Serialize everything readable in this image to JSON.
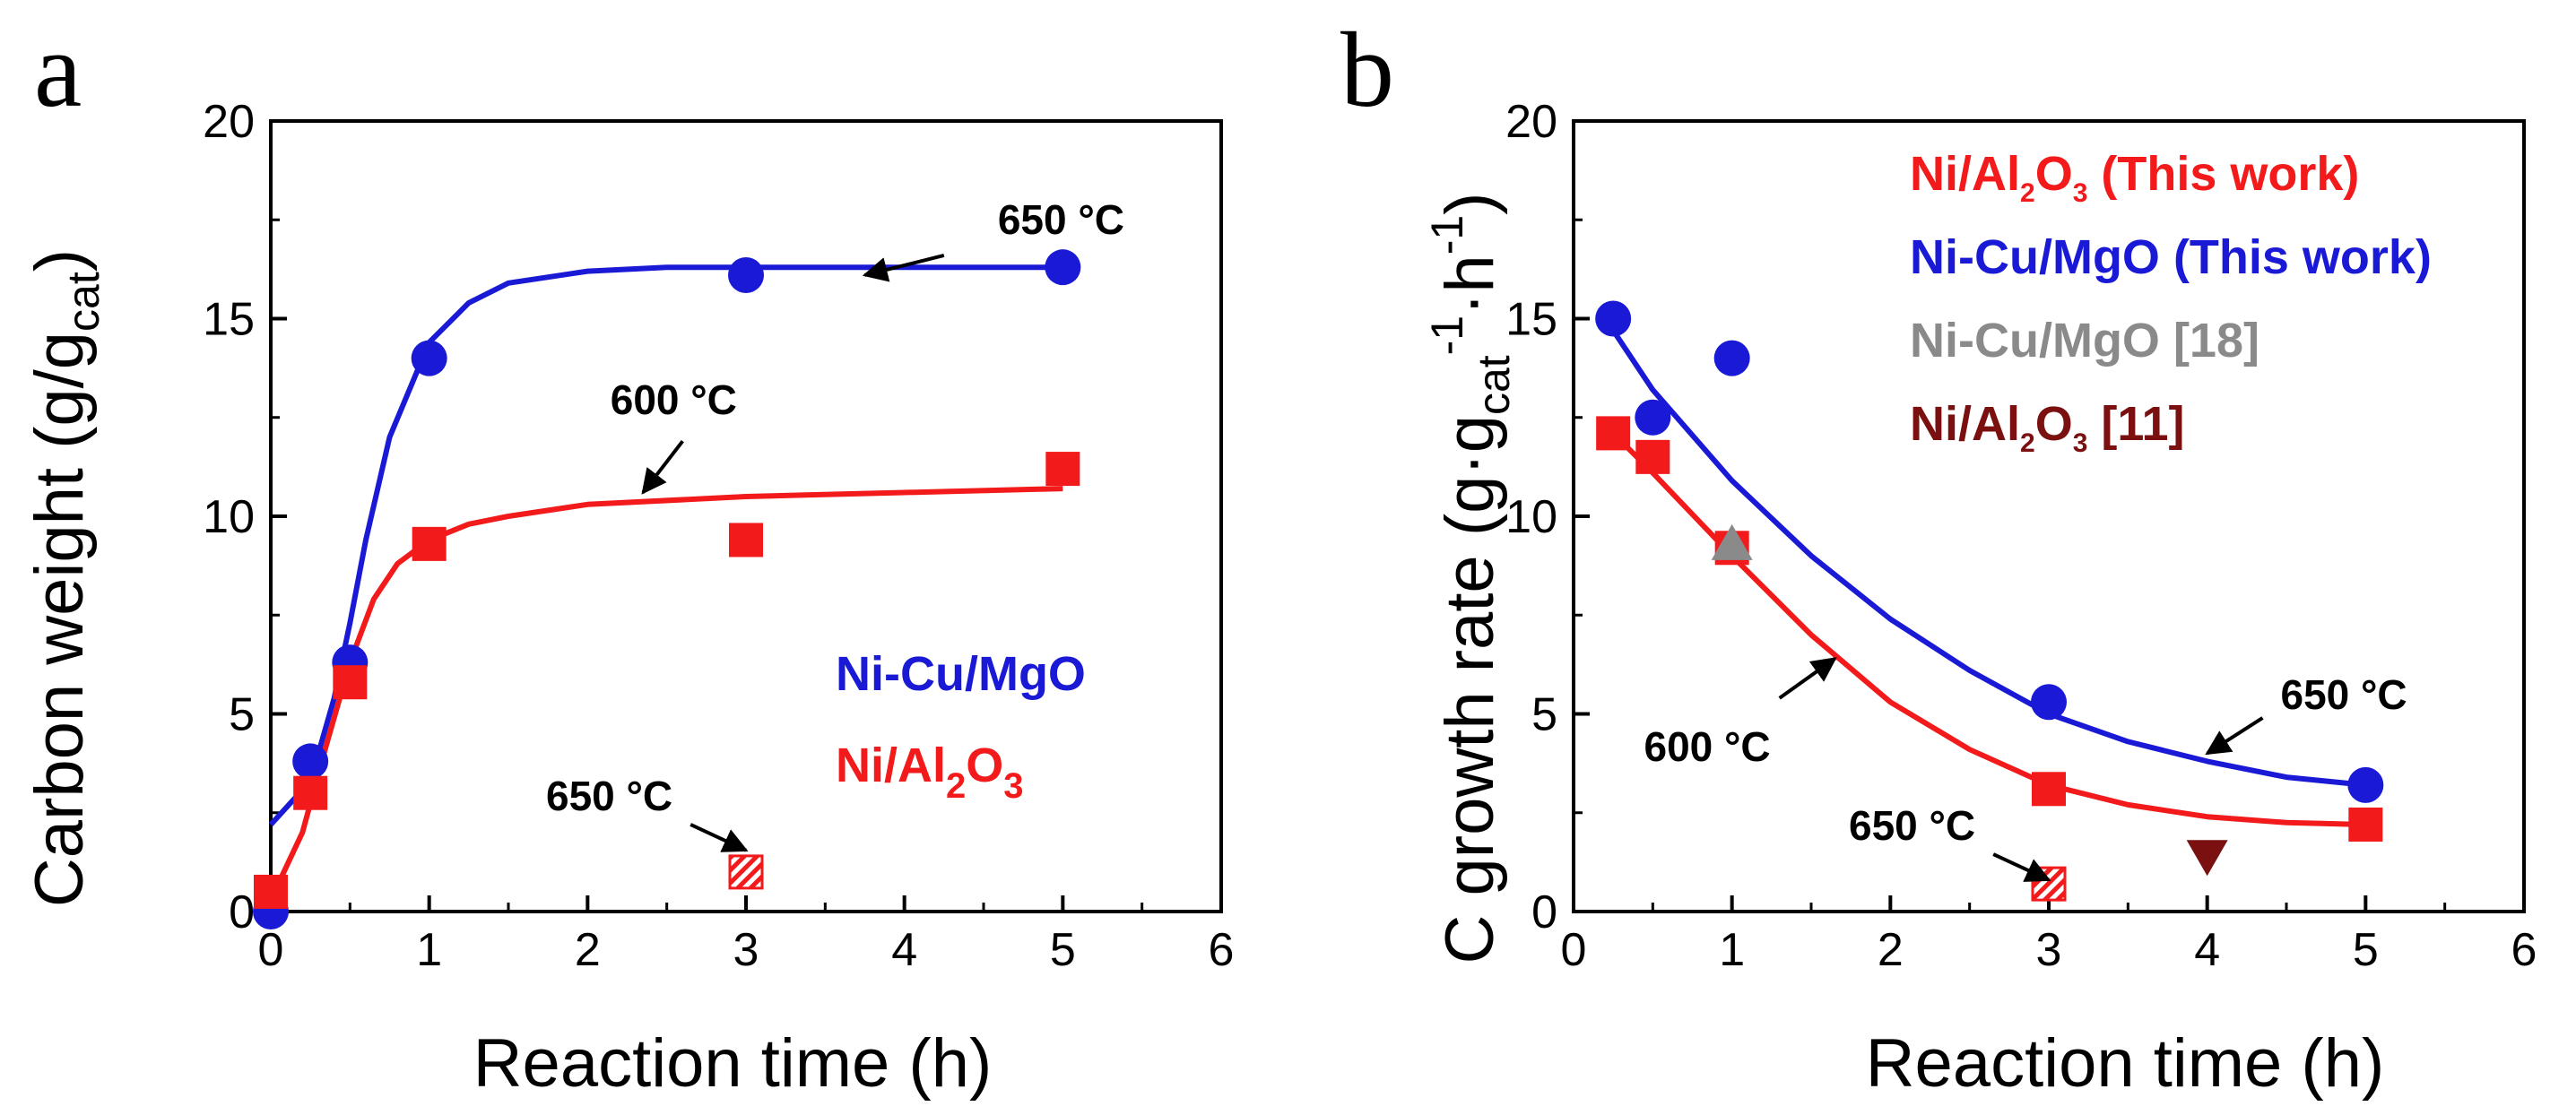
{
  "colors": {
    "blue": "#1a1ad6",
    "red": "#f21a1a",
    "gray": "#8a8a8a",
    "darkred": "#7a1010",
    "black": "#000000"
  },
  "chart_data": [
    {
      "panel": "a",
      "type": "scatter",
      "xlabel": "Reaction time (h)",
      "ylabel": "Carbon weight (g/g_cat)",
      "ylabel_main": "Carbon weight (g/g",
      "ylabel_sub": "cat",
      "ylabel_close": ")",
      "xlim": [
        0,
        6
      ],
      "ylim": [
        0,
        20
      ],
      "xticks": [
        0,
        1,
        2,
        3,
        4,
        5,
        6
      ],
      "yticks": [
        0,
        5,
        10,
        15,
        20
      ],
      "series": [
        {
          "name": "Ni-Cu/MgO",
          "color": "blue",
          "marker": "circle",
          "x": [
            0,
            0.25,
            0.5,
            1,
            3,
            5
          ],
          "y": [
            0,
            3.8,
            6.3,
            14.0,
            16.1,
            16.3
          ],
          "fit_x": [
            0,
            0.25,
            0.4,
            0.5,
            0.6,
            0.75,
            1,
            1.25,
            1.5,
            2,
            2.5,
            3,
            4,
            5
          ],
          "fit_y": [
            2.2,
            3.3,
            5.4,
            7.3,
            9.4,
            12.0,
            14.4,
            15.4,
            15.9,
            16.2,
            16.3,
            16.3,
            16.3,
            16.3
          ]
        },
        {
          "name": "Ni/Al2O3",
          "color": "red",
          "marker": "square",
          "x": [
            0,
            0.25,
            0.5,
            1,
            3,
            5
          ],
          "y": [
            0.5,
            3.0,
            5.8,
            9.3,
            9.4,
            11.2
          ],
          "fit_x": [
            0,
            0.2,
            0.35,
            0.5,
            0.65,
            0.8,
            1,
            1.25,
            1.5,
            2,
            3,
            4,
            5
          ],
          "fit_y": [
            0.3,
            2.0,
            4.2,
            6.3,
            7.9,
            8.8,
            9.4,
            9.8,
            10.0,
            10.3,
            10.5,
            10.6,
            10.7
          ]
        },
        {
          "name": "650 °C hatched",
          "color": "red",
          "marker": "hatched-square",
          "x": [
            3
          ],
          "y": [
            1.0
          ]
        }
      ],
      "legend": [
        {
          "main": "Ni-Cu/MgO",
          "color": "blue"
        },
        {
          "main": "Ni/Al",
          "sub1": "2",
          "mid": "O",
          "sub2": "3",
          "color": "red"
        }
      ],
      "annotations": [
        {
          "text": "650 °C",
          "from": [
            4.25,
            16.6
          ],
          "to": [
            3.75,
            16.1
          ]
        },
        {
          "text": "600 °C",
          "from": [
            2.6,
            11.9
          ],
          "to": [
            2.35,
            10.6
          ]
        },
        {
          "text": "650 °C",
          "from": [
            2.65,
            2.2
          ],
          "to": [
            3.0,
            1.55
          ]
        }
      ]
    },
    {
      "panel": "b",
      "type": "scatter",
      "xlabel": "Reaction time (h)",
      "ylabel": "C growth rate (g·g_cat^-1·h^-1)",
      "ylabel_main": "C growth rate (g·g",
      "ylabel_sub": "cat",
      "ylabel_sup1": "-1",
      "ylabel_mid": "·h",
      "ylabel_sup2": "-1",
      "ylabel_close": ")",
      "xlim": [
        0,
        6
      ],
      "ylim": [
        0,
        20
      ],
      "xticks": [
        0,
        1,
        2,
        3,
        4,
        5,
        6
      ],
      "yticks": [
        0,
        5,
        10,
        15,
        20
      ],
      "series": [
        {
          "name": "Ni-Cu/MgO (This work)",
          "color": "blue",
          "marker": "circle",
          "x": [
            0.25,
            0.5,
            1,
            3,
            5
          ],
          "y": [
            15.0,
            12.5,
            14.0,
            5.3,
            3.2
          ],
          "fit_x": [
            0.25,
            0.5,
            1,
            1.5,
            2,
            2.5,
            3,
            3.5,
            4,
            4.5,
            5
          ],
          "fit_y": [
            14.7,
            13.2,
            10.9,
            9.0,
            7.4,
            6.1,
            5.0,
            4.3,
            3.8,
            3.4,
            3.2
          ]
        },
        {
          "name": "Ni/Al2O3 (This work)",
          "color": "red",
          "marker": "square",
          "x": [
            0.25,
            0.5,
            1,
            3,
            5
          ],
          "y": [
            12.1,
            11.5,
            9.2,
            3.1,
            2.2
          ],
          "fit_x": [
            0.25,
            0.5,
            1,
            1.5,
            2,
            2.5,
            3,
            3.5,
            4,
            4.5,
            5
          ],
          "fit_y": [
            12.1,
            11.1,
            9.0,
            7.0,
            5.3,
            4.1,
            3.2,
            2.7,
            2.4,
            2.25,
            2.2
          ]
        },
        {
          "name": "Ni-Cu/MgO [18]",
          "color": "gray",
          "marker": "triangle-up",
          "x": [
            1
          ],
          "y": [
            9.3
          ]
        },
        {
          "name": "Ni/Al2O3 [11]",
          "color": "darkred",
          "marker": "triangle-down",
          "x": [
            4
          ],
          "y": [
            1.4
          ]
        },
        {
          "name": "650 °C hatched",
          "color": "red",
          "marker": "hatched-square",
          "x": [
            3
          ],
          "y": [
            0.7
          ]
        }
      ],
      "legend": [
        {
          "main": "Ni/Al",
          "sub1": "2",
          "mid": "O",
          "sub2": "3",
          "tail": " (This work)",
          "color": "red"
        },
        {
          "main": "Ni-Cu/MgO (This work)",
          "color": "blue"
        },
        {
          "main": "Ni-Cu/MgO [18]",
          "color": "gray"
        },
        {
          "main": "Ni/Al",
          "sub1": "2",
          "mid": "O",
          "sub2": "3",
          "tail": " [11]",
          "color": "darkred"
        }
      ],
      "annotations": [
        {
          "text": "650 °C",
          "from": [
            4.35,
            4.9
          ],
          "to": [
            4.0,
            4.0
          ]
        },
        {
          "text": "600 °C",
          "from": [
            1.3,
            5.4
          ],
          "to": [
            1.65,
            6.4
          ]
        },
        {
          "text": "650 °C",
          "from": [
            2.65,
            1.45
          ],
          "to": [
            3.0,
            0.8
          ]
        }
      ]
    }
  ]
}
